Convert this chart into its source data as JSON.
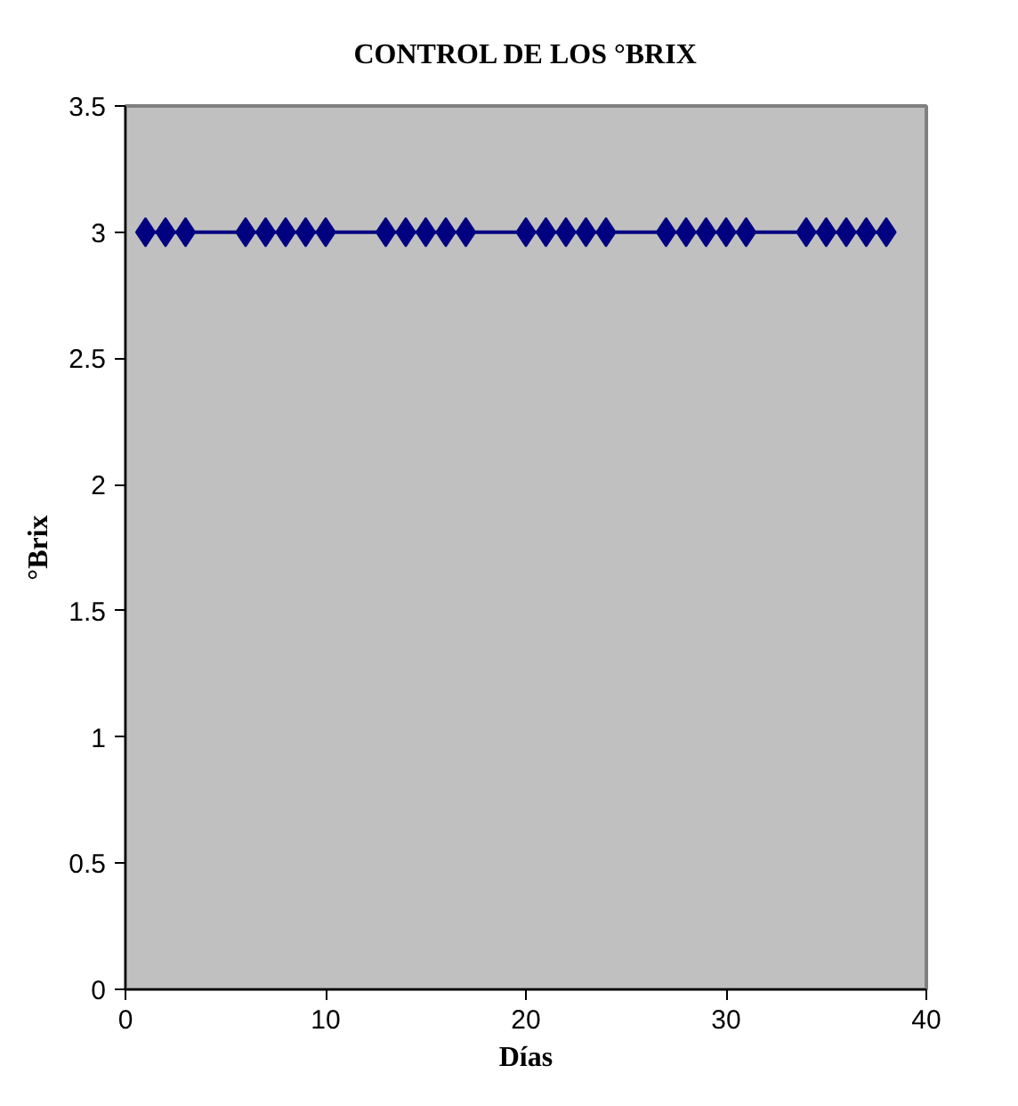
{
  "chart_data": {
    "type": "line",
    "title": "CONTROL DE LOS °BRIX",
    "xlabel": "Días",
    "ylabel": "°Brix",
    "x": [
      1,
      2,
      3,
      6,
      7,
      8,
      9,
      10,
      13,
      14,
      15,
      16,
      17,
      20,
      21,
      22,
      23,
      24,
      27,
      28,
      29,
      30,
      31,
      34,
      35,
      36,
      37,
      38
    ],
    "series": [
      {
        "color": "#000080",
        "values": [
          3,
          3,
          3,
          3,
          3,
          3,
          3,
          3,
          3,
          3,
          3,
          3,
          3,
          3,
          3,
          3,
          3,
          3,
          3,
          3,
          3,
          3,
          3,
          3,
          3,
          3,
          3,
          3
        ]
      }
    ],
    "xlim": [
      0,
      40
    ],
    "xticks": [
      0,
      10,
      20,
      30,
      40
    ],
    "ylim": [
      0,
      3.5
    ],
    "yticks": [
      0,
      0.5,
      1,
      1.5,
      2,
      2.5,
      3,
      3.5
    ],
    "marker": "diamond",
    "line_style": "solid",
    "grid": false
  }
}
